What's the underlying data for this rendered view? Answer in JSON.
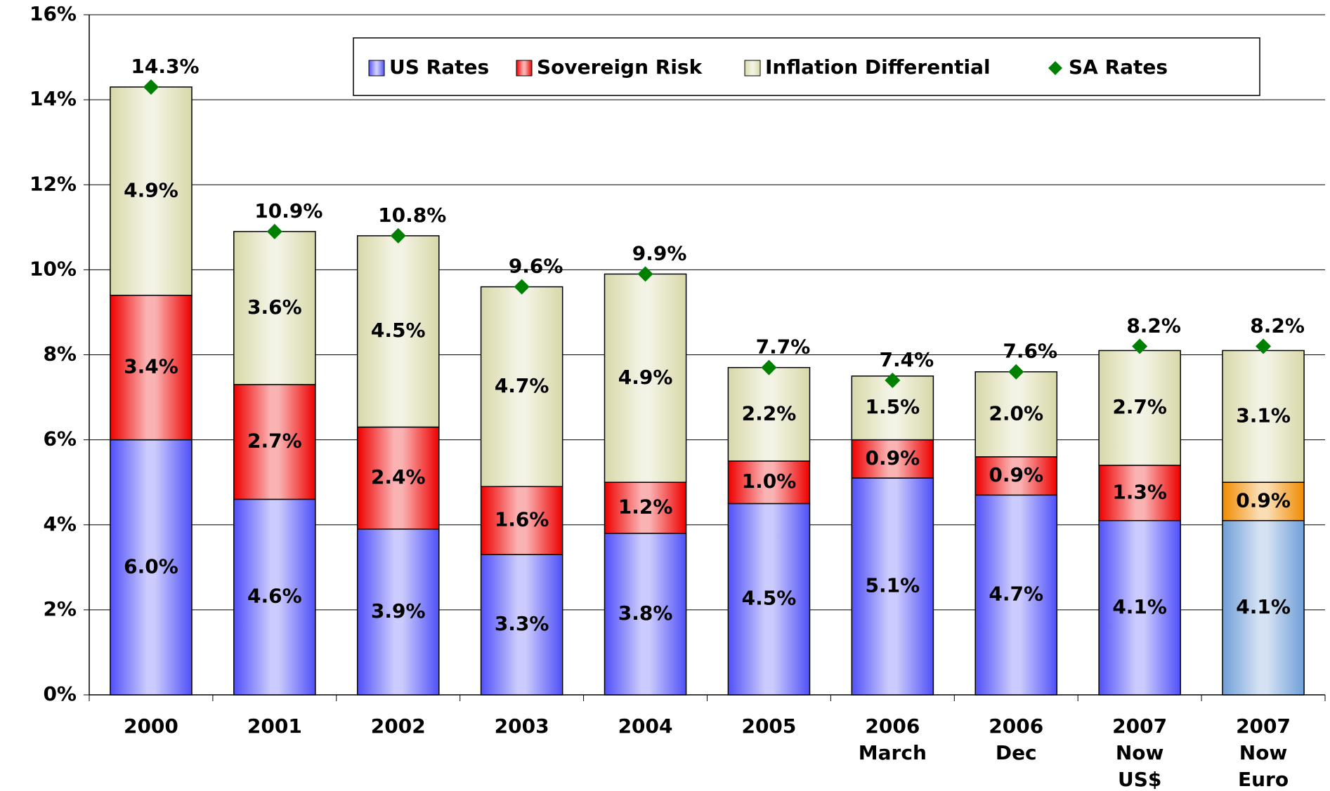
{
  "chart_data": {
    "type": "stacked-bar",
    "categories": [
      [
        "2000"
      ],
      [
        "2001"
      ],
      [
        "2002"
      ],
      [
        "2003"
      ],
      [
        "2004"
      ],
      [
        "2005"
      ],
      [
        "2006",
        "March"
      ],
      [
        "2006",
        "Dec"
      ],
      [
        "2007",
        "Now",
        "US$"
      ],
      [
        "2007",
        "Now",
        "Euro"
      ]
    ],
    "series": [
      {
        "name": "US Rates",
        "color": "#5050f8",
        "colors": [
          "#5050f8",
          "#5050f8",
          "#5050f8",
          "#5050f8",
          "#5050f8",
          "#5050f8",
          "#5050f8",
          "#5050f8",
          "#5050f8",
          "#6f9fd8"
        ],
        "values": [
          6.0,
          4.6,
          3.9,
          3.3,
          3.8,
          4.5,
          5.1,
          4.7,
          4.1,
          4.1
        ],
        "value_labels": [
          "6.0%",
          "4.6%",
          "3.9%",
          "3.3%",
          "3.8%",
          "4.5%",
          "5.1%",
          "4.7%",
          "4.1%",
          "4.1%"
        ]
      },
      {
        "name": "Sovereign Risk",
        "color": "#ee0000",
        "colors": [
          "#ee0000",
          "#ee0000",
          "#ee0000",
          "#ee0000",
          "#ee0000",
          "#ee0000",
          "#ee0000",
          "#ee0000",
          "#ee0000",
          "#f08c00"
        ],
        "values": [
          3.4,
          2.7,
          2.4,
          1.6,
          1.2,
          1.0,
          0.9,
          0.9,
          1.3,
          0.9
        ],
        "value_labels": [
          "3.4%",
          "2.7%",
          "2.4%",
          "1.6%",
          "1.2%",
          "1.0%",
          "0.9%",
          "0.9%",
          "1.3%",
          "0.9%"
        ]
      },
      {
        "name": "Inflation Differential",
        "color": "#d8d8a8",
        "colors": [
          "#d8d8a8",
          "#d8d8a8",
          "#d8d8a8",
          "#d8d8a8",
          "#d8d8a8",
          "#d8d8a8",
          "#d8d8a8",
          "#d8d8a8",
          "#d8d8a8",
          "#d8d8a8"
        ],
        "values": [
          4.9,
          3.6,
          4.5,
          4.7,
          4.9,
          2.2,
          1.5,
          2.0,
          2.7,
          3.1
        ],
        "value_labels": [
          "4.9%",
          "3.6%",
          "4.5%",
          "4.7%",
          "4.9%",
          "2.2%",
          "1.5%",
          "2.0%",
          "2.7%",
          "3.1%"
        ]
      },
      {
        "name": "SA Rates",
        "type": "marker",
        "color": "#008000",
        "values": [
          14.3,
          10.9,
          10.8,
          9.6,
          9.9,
          7.7,
          7.4,
          7.6,
          8.2,
          8.2
        ],
        "value_labels": [
          "14.3%",
          "10.9%",
          "10.8%",
          "9.6%",
          "9.9%",
          "7.7%",
          "7.4%",
          "7.6%",
          "8.2%",
          "8.2%"
        ]
      }
    ],
    "ylim": [
      0,
      16
    ],
    "yticks": [
      {
        "value": 0,
        "label": "0%"
      },
      {
        "value": 2,
        "label": "2%"
      },
      {
        "value": 4,
        "label": "4%"
      },
      {
        "value": 6,
        "label": "6%"
      },
      {
        "value": 8,
        "label": "8%"
      },
      {
        "value": 10,
        "label": "10%"
      },
      {
        "value": 12,
        "label": "12%"
      },
      {
        "value": 14,
        "label": "14%"
      },
      {
        "value": 16,
        "label": "16%"
      }
    ],
    "grid": true,
    "legend": "top"
  }
}
